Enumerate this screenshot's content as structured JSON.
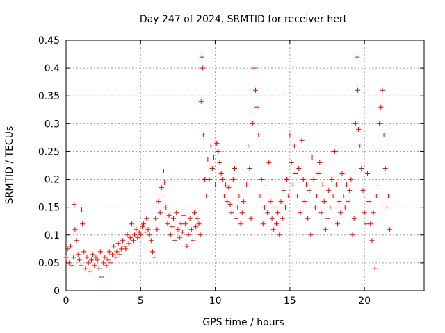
{
  "chart_data": {
    "type": "scatter",
    "title": "Day 247 of 2024, SRMTID for receiver hert",
    "xlabel": "GPS time / hours",
    "ylabel": "SRMTID / TECUs",
    "xlim": [
      0,
      24
    ],
    "ylim": [
      0,
      0.45
    ],
    "x_ticks": [
      0,
      5,
      10,
      15,
      20
    ],
    "y_ticks": [
      0,
      0.05,
      0.1,
      0.15,
      0.2,
      0.25,
      0.3,
      0.35,
      0.4,
      0.45
    ],
    "y_tick_labels": [
      "0",
      "0.05",
      "0.1",
      "0.15",
      "0.2",
      "0.25",
      "0.3",
      "0.35",
      "0.4",
      "0.45"
    ],
    "x_tick_labels": [
      "0",
      "5",
      "10",
      "15",
      "20"
    ],
    "grid": true,
    "legend": "none",
    "marker": "plus",
    "color": "#ff0000",
    "series": [
      {
        "points": [
          [
            0.0,
            0.06
          ],
          [
            0.1,
            0.075
          ],
          [
            0.2,
            0.05
          ],
          [
            0.3,
            0.08
          ],
          [
            0.4,
            0.045
          ],
          [
            0.5,
            0.06
          ],
          [
            0.55,
            0.155
          ],
          [
            0.6,
            0.11
          ],
          [
            0.7,
            0.09
          ],
          [
            0.8,
            0.065
          ],
          [
            0.9,
            0.055
          ],
          [
            1.0,
            0.045
          ],
          [
            1.05,
            0.145
          ],
          [
            1.1,
            0.12
          ],
          [
            1.2,
            0.07
          ],
          [
            1.3,
            0.04
          ],
          [
            1.4,
            0.06
          ],
          [
            1.5,
            0.05
          ],
          [
            1.6,
            0.035
          ],
          [
            1.7,
            0.055
          ],
          [
            1.8,
            0.065
          ],
          [
            1.9,
            0.045
          ],
          [
            2.0,
            0.06
          ],
          [
            2.1,
            0.055
          ],
          [
            2.2,
            0.04
          ],
          [
            2.3,
            0.07
          ],
          [
            2.4,
            0.025
          ],
          [
            2.5,
            0.05
          ],
          [
            2.6,
            0.06
          ],
          [
            2.7,
            0.045
          ],
          [
            2.8,
            0.055
          ],
          [
            2.9,
            0.07
          ],
          [
            3.0,
            0.05
          ],
          [
            3.1,
            0.065
          ],
          [
            3.2,
            0.08
          ],
          [
            3.3,
            0.06
          ],
          [
            3.4,
            0.07
          ],
          [
            3.5,
            0.085
          ],
          [
            3.6,
            0.065
          ],
          [
            3.7,
            0.075
          ],
          [
            3.8,
            0.09
          ],
          [
            3.9,
            0.08
          ],
          [
            4.0,
            0.075
          ],
          [
            4.1,
            0.1
          ],
          [
            4.2,
            0.085
          ],
          [
            4.3,
            0.095
          ],
          [
            4.4,
            0.12
          ],
          [
            4.5,
            0.09
          ],
          [
            4.6,
            0.1
          ],
          [
            4.7,
            0.11
          ],
          [
            4.8,
            0.095
          ],
          [
            4.9,
            0.105
          ],
          [
            5.0,
            0.1
          ],
          [
            5.1,
            0.115
          ],
          [
            5.2,
            0.12
          ],
          [
            5.3,
            0.105
          ],
          [
            5.4,
            0.13
          ],
          [
            5.5,
            0.11
          ],
          [
            5.6,
            0.1
          ],
          [
            5.7,
            0.09
          ],
          [
            5.8,
            0.07
          ],
          [
            5.9,
            0.06
          ],
          [
            6.0,
            0.13
          ],
          [
            6.1,
            0.11
          ],
          [
            6.2,
            0.16
          ],
          [
            6.3,
            0.14
          ],
          [
            6.4,
            0.185
          ],
          [
            6.5,
            0.17
          ],
          [
            6.55,
            0.215
          ],
          [
            6.6,
            0.195
          ],
          [
            6.7,
            0.15
          ],
          [
            6.8,
            0.12
          ],
          [
            6.9,
            0.135
          ],
          [
            7.0,
            0.1
          ],
          [
            7.1,
            0.115
          ],
          [
            7.2,
            0.13
          ],
          [
            7.3,
            0.09
          ],
          [
            7.4,
            0.14
          ],
          [
            7.5,
            0.11
          ],
          [
            7.6,
            0.095
          ],
          [
            7.7,
            0.12
          ],
          [
            7.8,
            0.105
          ],
          [
            7.9,
            0.135
          ],
          [
            8.0,
            0.12
          ],
          [
            8.1,
            0.08
          ],
          [
            8.2,
            0.1
          ],
          [
            8.3,
            0.13
          ],
          [
            8.4,
            0.11
          ],
          [
            8.5,
            0.09
          ],
          [
            8.6,
            0.14
          ],
          [
            8.7,
            0.115
          ],
          [
            8.8,
            0.13
          ],
          [
            8.9,
            0.12
          ],
          [
            9.0,
            0.1
          ],
          [
            9.05,
            0.34
          ],
          [
            9.1,
            0.42
          ],
          [
            9.15,
            0.4
          ],
          [
            9.2,
            0.28
          ],
          [
            9.3,
            0.2
          ],
          [
            9.4,
            0.17
          ],
          [
            9.5,
            0.235
          ],
          [
            9.6,
            0.2
          ],
          [
            9.7,
            0.26
          ],
          [
            9.8,
            0.22
          ],
          [
            9.9,
            0.24
          ],
          [
            10.0,
            0.19
          ],
          [
            10.1,
            0.265
          ],
          [
            10.2,
            0.25
          ],
          [
            10.3,
            0.23
          ],
          [
            10.4,
            0.21
          ],
          [
            10.5,
            0.2
          ],
          [
            10.6,
            0.17
          ],
          [
            10.7,
            0.19
          ],
          [
            10.8,
            0.16
          ],
          [
            10.9,
            0.185
          ],
          [
            11.0,
            0.155
          ],
          [
            11.1,
            0.14
          ],
          [
            11.2,
            0.2
          ],
          [
            11.3,
            0.22
          ],
          [
            11.4,
            0.13
          ],
          [
            11.5,
            0.15
          ],
          [
            11.6,
            0.17
          ],
          [
            11.7,
            0.12
          ],
          [
            11.8,
            0.14
          ],
          [
            11.9,
            0.16
          ],
          [
            12.0,
            0.24
          ],
          [
            12.1,
            0.19
          ],
          [
            12.2,
            0.26
          ],
          [
            12.3,
            0.22
          ],
          [
            12.4,
            0.13
          ],
          [
            12.5,
            0.3
          ],
          [
            12.6,
            0.4
          ],
          [
            12.7,
            0.36
          ],
          [
            12.8,
            0.33
          ],
          [
            12.9,
            0.28
          ],
          [
            13.0,
            0.17
          ],
          [
            13.1,
            0.2
          ],
          [
            13.2,
            0.12
          ],
          [
            13.3,
            0.15
          ],
          [
            13.4,
            0.19
          ],
          [
            13.5,
            0.14
          ],
          [
            13.6,
            0.23
          ],
          [
            13.7,
            0.16
          ],
          [
            13.8,
            0.13
          ],
          [
            13.9,
            0.11
          ],
          [
            14.0,
            0.15
          ],
          [
            14.1,
            0.12
          ],
          [
            14.2,
            0.14
          ],
          [
            14.3,
            0.1
          ],
          [
            14.4,
            0.16
          ],
          [
            14.5,
            0.13
          ],
          [
            14.6,
            0.18
          ],
          [
            14.7,
            0.15
          ],
          [
            14.8,
            0.2
          ],
          [
            14.9,
            0.17
          ],
          [
            15.0,
            0.28
          ],
          [
            15.1,
            0.23
          ],
          [
            15.2,
            0.19
          ],
          [
            15.3,
            0.26
          ],
          [
            15.4,
            0.21
          ],
          [
            15.5,
            0.17
          ],
          [
            15.6,
            0.22
          ],
          [
            15.7,
            0.14
          ],
          [
            15.8,
            0.27
          ],
          [
            15.9,
            0.2
          ],
          [
            16.0,
            0.16
          ],
          [
            16.1,
            0.19
          ],
          [
            16.2,
            0.13
          ],
          [
            16.3,
            0.18
          ],
          [
            16.4,
            0.1
          ],
          [
            16.5,
            0.24
          ],
          [
            16.6,
            0.2
          ],
          [
            16.7,
            0.15
          ],
          [
            16.8,
            0.17
          ],
          [
            16.9,
            0.21
          ],
          [
            17.0,
            0.23
          ],
          [
            17.1,
            0.14
          ],
          [
            17.2,
            0.19
          ],
          [
            17.3,
            0.16
          ],
          [
            17.4,
            0.11
          ],
          [
            17.5,
            0.13
          ],
          [
            17.6,
            0.18
          ],
          [
            17.7,
            0.15
          ],
          [
            17.8,
            0.2
          ],
          [
            17.9,
            0.17
          ],
          [
            18.0,
            0.25
          ],
          [
            18.1,
            0.19
          ],
          [
            18.2,
            0.12
          ],
          [
            18.3,
            0.16
          ],
          [
            18.4,
            0.14
          ],
          [
            18.5,
            0.21
          ],
          [
            18.6,
            0.17
          ],
          [
            18.7,
            0.15
          ],
          [
            18.8,
            0.19
          ],
          [
            18.9,
            0.16
          ],
          [
            19.0,
            0.18
          ],
          [
            19.1,
            0.2
          ],
          [
            19.2,
            0.1
          ],
          [
            19.3,
            0.13
          ],
          [
            19.4,
            0.3
          ],
          [
            19.5,
            0.42
          ],
          [
            19.55,
            0.36
          ],
          [
            19.6,
            0.29
          ],
          [
            19.7,
            0.26
          ],
          [
            19.8,
            0.22
          ],
          [
            19.9,
            0.18
          ],
          [
            20.0,
            0.14
          ],
          [
            20.1,
            0.12
          ],
          [
            20.2,
            0.21
          ],
          [
            20.3,
            0.16
          ],
          [
            20.4,
            0.12
          ],
          [
            20.5,
            0.09
          ],
          [
            20.6,
            0.14
          ],
          [
            20.7,
            0.04
          ],
          [
            20.8,
            0.17
          ],
          [
            20.9,
            0.19
          ],
          [
            21.0,
            0.3
          ],
          [
            21.1,
            0.33
          ],
          [
            21.2,
            0.36
          ],
          [
            21.3,
            0.28
          ],
          [
            21.4,
            0.22
          ],
          [
            21.5,
            0.15
          ],
          [
            21.6,
            0.17
          ],
          [
            21.7,
            0.11
          ]
        ]
      }
    ]
  }
}
